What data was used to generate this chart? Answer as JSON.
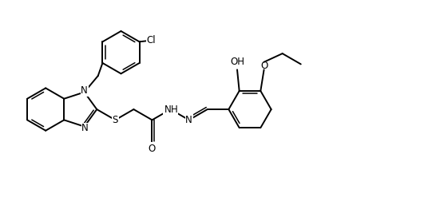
{
  "fig_width": 5.46,
  "fig_height": 2.72,
  "dpi": 100,
  "lw": 1.4,
  "lw2": 1.1,
  "fs": 8.5,
  "xlim": [
    0,
    10
  ],
  "ylim": [
    0,
    5
  ]
}
